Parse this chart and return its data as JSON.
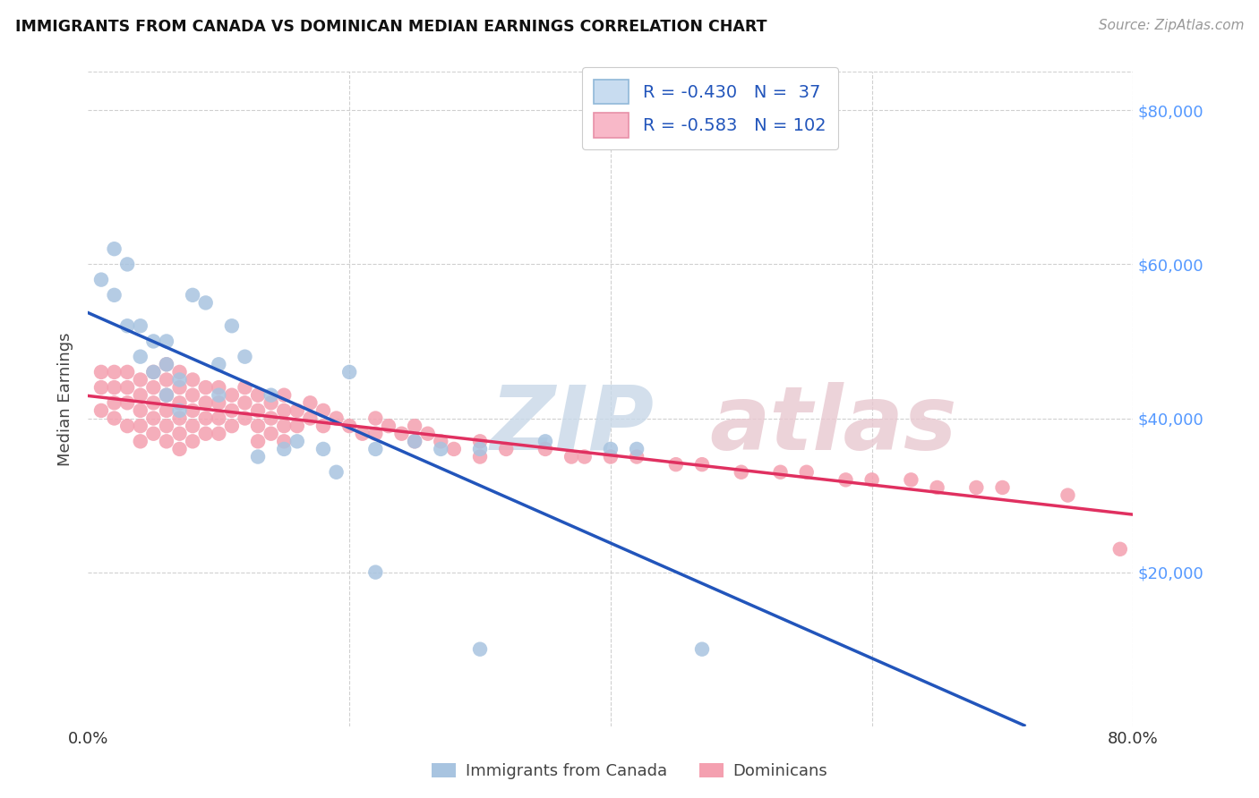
{
  "title": "IMMIGRANTS FROM CANADA VS DOMINICAN MEDIAN EARNINGS CORRELATION CHART",
  "source": "Source: ZipAtlas.com",
  "ylabel": "Median Earnings",
  "y_ticks": [
    20000,
    40000,
    60000,
    80000
  ],
  "y_tick_labels": [
    "$20,000",
    "$40,000",
    "$60,000",
    "$80,000"
  ],
  "xlim": [
    0.0,
    0.8
  ],
  "ylim": [
    0,
    85000
  ],
  "canada_R": -0.43,
  "canada_N": 37,
  "dominican_R": -0.583,
  "dominican_N": 102,
  "canada_color": "#a8c4e0",
  "dominican_color": "#f4a0b0",
  "canada_line_color": "#2255bb",
  "dominican_line_color": "#e0306090",
  "legend_box_color_canada": "#c8dcf0",
  "legend_box_color_dominican": "#f8b8c8",
  "watermark_text": "ZIPatlas",
  "canada_x": [
    0.01,
    0.02,
    0.02,
    0.03,
    0.03,
    0.04,
    0.04,
    0.05,
    0.05,
    0.06,
    0.06,
    0.06,
    0.07,
    0.07,
    0.08,
    0.09,
    0.1,
    0.1,
    0.11,
    0.12,
    0.13,
    0.14,
    0.15,
    0.16,
    0.18,
    0.19,
    0.2,
    0.22,
    0.25,
    0.27,
    0.3,
    0.35,
    0.4,
    0.42,
    0.22,
    0.3,
    0.47
  ],
  "canada_y": [
    58000,
    62000,
    56000,
    60000,
    52000,
    48000,
    52000,
    50000,
    46000,
    50000,
    47000,
    43000,
    45000,
    41000,
    56000,
    55000,
    47000,
    43000,
    52000,
    48000,
    35000,
    43000,
    36000,
    37000,
    36000,
    33000,
    46000,
    36000,
    37000,
    36000,
    36000,
    37000,
    36000,
    36000,
    20000,
    10000,
    10000
  ],
  "dominican_x": [
    0.01,
    0.01,
    0.01,
    0.02,
    0.02,
    0.02,
    0.02,
    0.03,
    0.03,
    0.03,
    0.03,
    0.04,
    0.04,
    0.04,
    0.04,
    0.04,
    0.05,
    0.05,
    0.05,
    0.05,
    0.05,
    0.06,
    0.06,
    0.06,
    0.06,
    0.06,
    0.06,
    0.07,
    0.07,
    0.07,
    0.07,
    0.07,
    0.07,
    0.08,
    0.08,
    0.08,
    0.08,
    0.08,
    0.09,
    0.09,
    0.09,
    0.09,
    0.1,
    0.1,
    0.1,
    0.1,
    0.11,
    0.11,
    0.11,
    0.12,
    0.12,
    0.12,
    0.13,
    0.13,
    0.13,
    0.13,
    0.14,
    0.14,
    0.14,
    0.15,
    0.15,
    0.15,
    0.15,
    0.16,
    0.16,
    0.17,
    0.17,
    0.18,
    0.18,
    0.19,
    0.2,
    0.21,
    0.22,
    0.22,
    0.23,
    0.24,
    0.25,
    0.25,
    0.26,
    0.27,
    0.28,
    0.3,
    0.3,
    0.32,
    0.35,
    0.37,
    0.38,
    0.4,
    0.42,
    0.45,
    0.47,
    0.5,
    0.53,
    0.55,
    0.58,
    0.6,
    0.63,
    0.65,
    0.68,
    0.7,
    0.75,
    0.79
  ],
  "dominican_y": [
    46000,
    44000,
    41000,
    46000,
    44000,
    42000,
    40000,
    46000,
    44000,
    42000,
    39000,
    45000,
    43000,
    41000,
    39000,
    37000,
    46000,
    44000,
    42000,
    40000,
    38000,
    47000,
    45000,
    43000,
    41000,
    39000,
    37000,
    46000,
    44000,
    42000,
    40000,
    38000,
    36000,
    45000,
    43000,
    41000,
    39000,
    37000,
    44000,
    42000,
    40000,
    38000,
    44000,
    42000,
    40000,
    38000,
    43000,
    41000,
    39000,
    44000,
    42000,
    40000,
    43000,
    41000,
    39000,
    37000,
    42000,
    40000,
    38000,
    43000,
    41000,
    39000,
    37000,
    41000,
    39000,
    42000,
    40000,
    41000,
    39000,
    40000,
    39000,
    38000,
    40000,
    38000,
    39000,
    38000,
    39000,
    37000,
    38000,
    37000,
    36000,
    37000,
    35000,
    36000,
    36000,
    35000,
    35000,
    35000,
    35000,
    34000,
    34000,
    33000,
    33000,
    33000,
    32000,
    32000,
    32000,
    31000,
    31000,
    31000,
    30000,
    23000
  ]
}
